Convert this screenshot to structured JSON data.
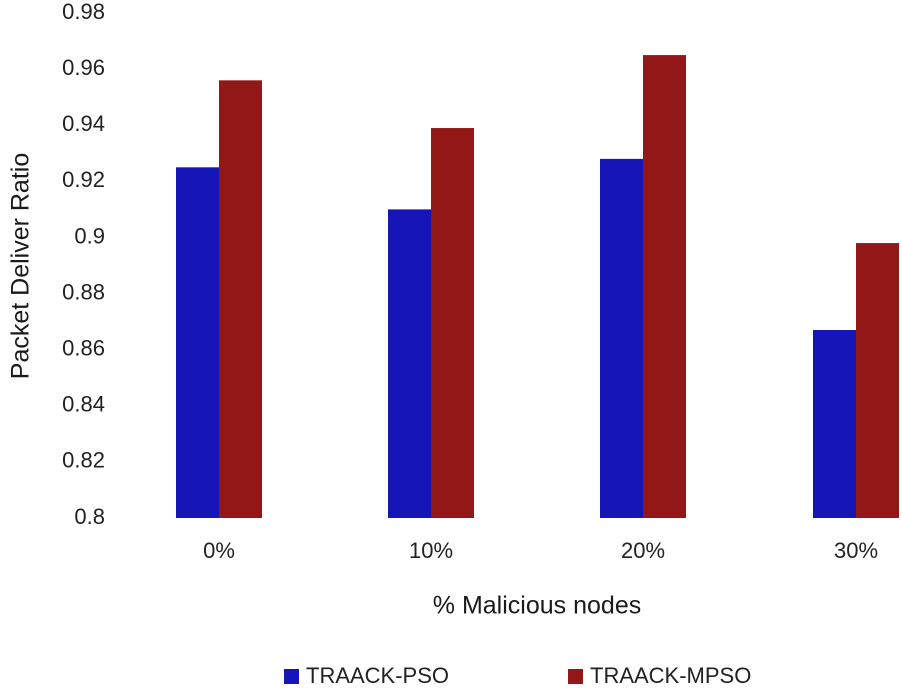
{
  "chart_data": {
    "type": "bar",
    "title": "",
    "xlabel": "% Malicious nodes",
    "ylabel": "Packet Deliver Ratio",
    "categories": [
      "0%",
      "10%",
      "20%",
      "30%"
    ],
    "series": [
      {
        "name": "TRAACK-PSO",
        "color": "#1515b8",
        "values": [
          0.925,
          0.91,
          0.928,
          0.867
        ]
      },
      {
        "name": "TRAACK-MPSO",
        "color": "#921818",
        "values": [
          0.956,
          0.939,
          0.965,
          0.898
        ]
      }
    ],
    "ylim": [
      0.8,
      0.98
    ],
    "yticks": [
      "0.8",
      "0.82",
      "0.84",
      "0.86",
      "0.88",
      "0.9",
      "0.92",
      "0.94",
      "0.96",
      "0.98"
    ],
    "grid": false,
    "legend_position": "bottom"
  }
}
